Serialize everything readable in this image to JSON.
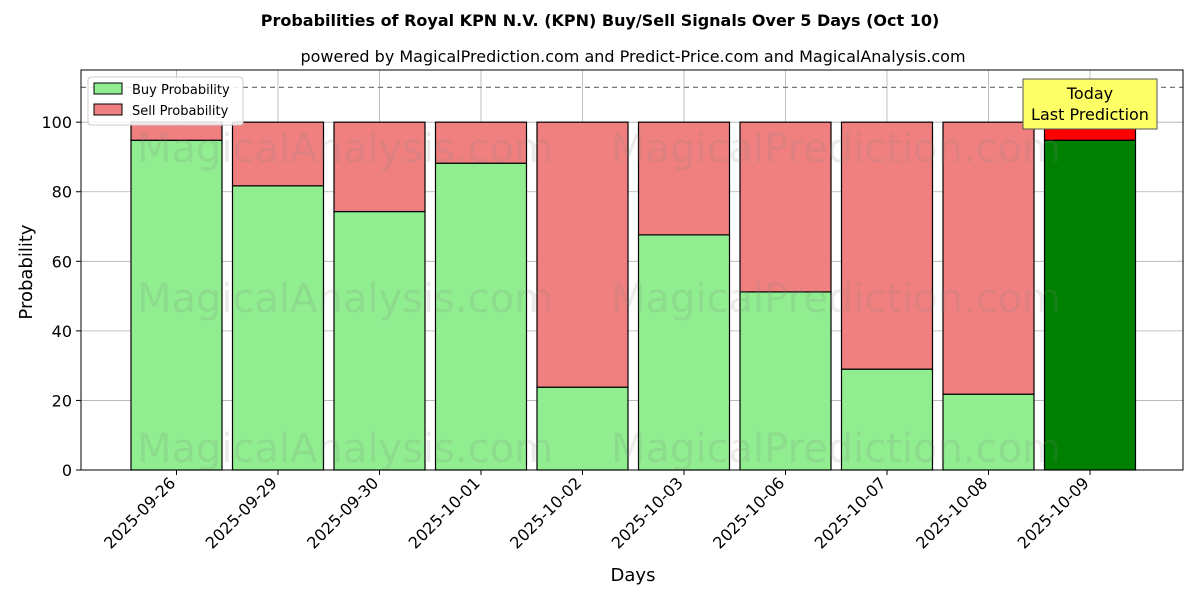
{
  "chart_data": {
    "type": "bar",
    "stacked": true,
    "title": "Probabilities of Royal KPN N.V. (KPN) Buy/Sell Signals Over 5 Days (Oct 10)",
    "subtitle": "powered by MagicalPrediction.com and Predict-Price.com and MagicalAnalysis.com",
    "xlabel": "Days",
    "ylabel": "Probability",
    "ylim": [
      0,
      115
    ],
    "yticks": [
      0,
      20,
      40,
      60,
      80,
      100
    ],
    "grid": true,
    "legend_position": "top-left",
    "categories": [
      "2025-09-26",
      "2025-09-29",
      "2025-09-30",
      "2025-10-01",
      "2025-10-02",
      "2025-10-03",
      "2025-10-06",
      "2025-10-07",
      "2025-10-08",
      "2025-10-09"
    ],
    "series": [
      {
        "name": "Buy Probability",
        "values": [
          94.8,
          81.7,
          74.3,
          88.2,
          23.8,
          67.6,
          51.2,
          29.0,
          21.8,
          94.8
        ]
      },
      {
        "name": "Sell Probability",
        "values": [
          5.2,
          18.3,
          25.7,
          11.8,
          76.2,
          32.4,
          48.8,
          71.0,
          78.2,
          5.2
        ]
      }
    ],
    "colors": {
      "buy": "#90ee90",
      "sell": "#f08080",
      "buy_today": "#008000",
      "sell_today": "#ff0000",
      "annotation_bg": "#ffff66"
    },
    "reference_line": 110,
    "annotation": {
      "lines": [
        "Today",
        "Last Prediction"
      ],
      "index": 9
    },
    "watermarks": [
      "MagicalAnalysis.com",
      "MagicalPrediction.com"
    ]
  }
}
